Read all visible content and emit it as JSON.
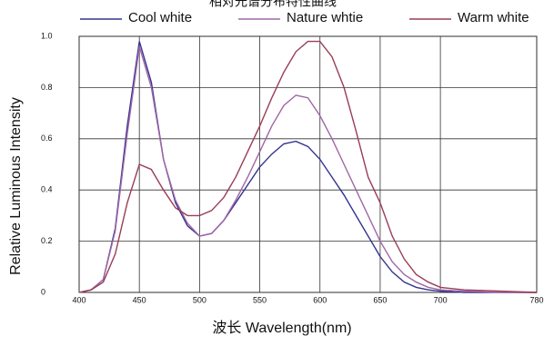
{
  "chart_data": {
    "type": "line",
    "title": "相对光谱分布特性曲线",
    "x_label": "波长  Wavelength(nm)",
    "y_label": "Relative Luminous Intensity",
    "x": [
      400,
      410,
      420,
      430,
      440,
      450,
      460,
      470,
      480,
      490,
      500,
      510,
      520,
      530,
      540,
      550,
      560,
      570,
      580,
      590,
      600,
      610,
      620,
      630,
      640,
      650,
      660,
      670,
      680,
      690,
      700,
      720,
      750,
      780
    ],
    "series": [
      {
        "name": "Cool white",
        "color": "#33338f",
        "values": [
          0,
          0.01,
          0.05,
          0.25,
          0.65,
          0.98,
          0.82,
          0.52,
          0.35,
          0.26,
          0.22,
          0.23,
          0.28,
          0.35,
          0.42,
          0.49,
          0.54,
          0.58,
          0.59,
          0.57,
          0.52,
          0.45,
          0.38,
          0.3,
          0.22,
          0.14,
          0.08,
          0.04,
          0.02,
          0.01,
          0.005,
          0,
          0,
          0
        ]
      },
      {
        "name": "Nature whtie",
        "color": "#a066a8",
        "values": [
          0,
          0.01,
          0.05,
          0.24,
          0.62,
          0.96,
          0.8,
          0.52,
          0.36,
          0.27,
          0.22,
          0.23,
          0.28,
          0.36,
          0.45,
          0.55,
          0.65,
          0.73,
          0.77,
          0.76,
          0.69,
          0.6,
          0.5,
          0.4,
          0.3,
          0.2,
          0.12,
          0.07,
          0.04,
          0.02,
          0.01,
          0.005,
          0,
          0
        ]
      },
      {
        "name": "Warm white",
        "color": "#9a3d55",
        "values": [
          0,
          0.01,
          0.04,
          0.15,
          0.35,
          0.5,
          0.48,
          0.4,
          0.33,
          0.3,
          0.3,
          0.32,
          0.37,
          0.45,
          0.55,
          0.65,
          0.76,
          0.86,
          0.94,
          0.98,
          0.98,
          0.92,
          0.8,
          0.63,
          0.45,
          0.35,
          0.22,
          0.13,
          0.07,
          0.04,
          0.02,
          0.01,
          0.005,
          0
        ]
      }
    ],
    "xlim": [
      400,
      780
    ],
    "xticks": [
      400,
      450,
      500,
      550,
      600,
      650,
      700,
      780
    ],
    "ylim": [
      0,
      1
    ],
    "yticks": [
      0,
      0.2,
      0.4,
      0.6,
      0.8,
      {
        "value": 1,
        "label": "1.0"
      }
    ],
    "grid": true,
    "legend": "top"
  }
}
